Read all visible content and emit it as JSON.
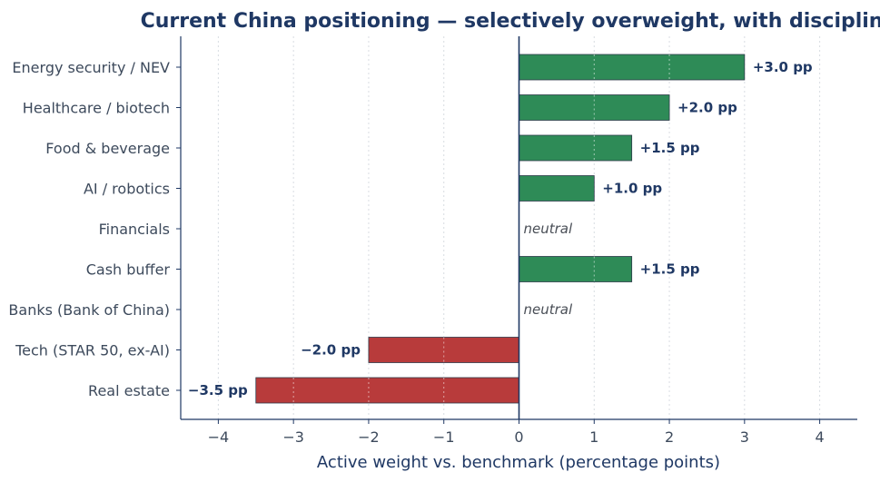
{
  "chart_data": {
    "type": "bar",
    "orientation": "horizontal",
    "title": "Current China positioning — selectively overweight, with discipline",
    "xlabel": "Active weight vs. benchmark (percentage points)",
    "ylabel": "",
    "xlim": [
      -4.5,
      4.5
    ],
    "xticks": [
      -4,
      -3,
      -2,
      -1,
      0,
      1,
      2,
      3,
      4
    ],
    "xtick_labels": [
      "−4",
      "−3",
      "−2",
      "−1",
      "0",
      "1",
      "2",
      "3",
      "4"
    ],
    "grid": "vertical dotted",
    "categories": [
      "Energy security / NEV",
      "Healthcare / biotech",
      "Food & beverage",
      "AI / robotics",
      "Financials",
      "Cash buffer",
      "Banks (Bank of China)",
      "Tech (STAR 50, ex-AI)",
      "Real estate"
    ],
    "values": [
      3.0,
      2.0,
      1.5,
      1.0,
      0,
      1.5,
      0,
      -2.0,
      -3.5
    ],
    "value_labels": [
      "+3.0 pp",
      "+2.0 pp",
      "+1.5 pp",
      "+1.0 pp",
      "neutral",
      "+1.5 pp",
      "neutral",
      "−2.0 pp",
      "−3.5 pp"
    ],
    "colors": {
      "positive": "#2e8b57",
      "negative": "#b83b3b",
      "axis": "#1f3864",
      "zero_line": "#1f3864"
    }
  }
}
